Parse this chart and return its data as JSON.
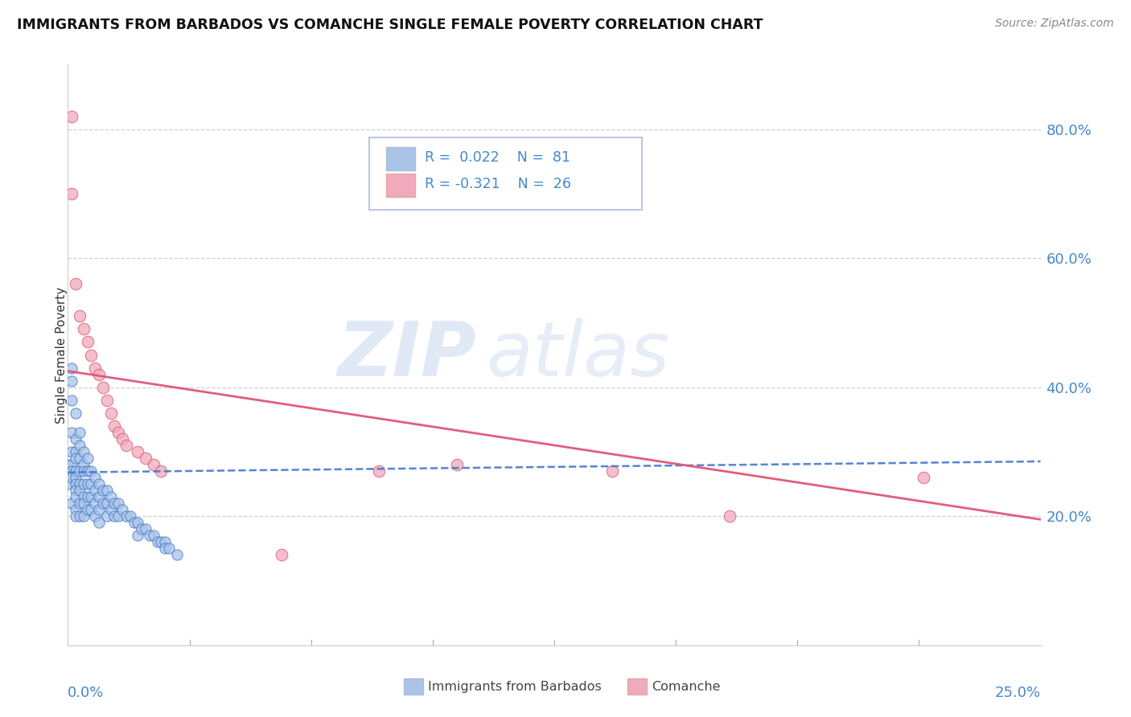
{
  "title": "IMMIGRANTS FROM BARBADOS VS COMANCHE SINGLE FEMALE POVERTY CORRELATION CHART",
  "source_text": "Source: ZipAtlas.com",
  "ylabel": "Single Female Poverty",
  "right_yticklabels": [
    "20.0%",
    "40.0%",
    "60.0%",
    "80.0%"
  ],
  "right_yticks": [
    0.2,
    0.4,
    0.6,
    0.8
  ],
  "xlim": [
    0.0,
    0.25
  ],
  "ylim": [
    0.0,
    0.9
  ],
  "barbados_color": "#aac4e8",
  "comanche_color": "#f0aabb",
  "barbados_line_color": "#4477cc",
  "comanche_line_color": "#e05575",
  "watermark_zip": "ZIP",
  "watermark_atlas": "atlas",
  "legend_text_color": "#4477cc",
  "legend_pink_text_color": "#e05575",
  "barbados_x": [
    0.0,
    0.0,
    0.001,
    0.001,
    0.001,
    0.001,
    0.001,
    0.001,
    0.001,
    0.001,
    0.001,
    0.002,
    0.002,
    0.002,
    0.002,
    0.002,
    0.002,
    0.002,
    0.002,
    0.002,
    0.002,
    0.002,
    0.003,
    0.003,
    0.003,
    0.003,
    0.003,
    0.003,
    0.003,
    0.003,
    0.004,
    0.004,
    0.004,
    0.004,
    0.004,
    0.004,
    0.004,
    0.005,
    0.005,
    0.005,
    0.005,
    0.005,
    0.006,
    0.006,
    0.006,
    0.006,
    0.007,
    0.007,
    0.007,
    0.007,
    0.008,
    0.008,
    0.008,
    0.008,
    0.009,
    0.009,
    0.01,
    0.01,
    0.01,
    0.011,
    0.011,
    0.012,
    0.012,
    0.013,
    0.013,
    0.014,
    0.015,
    0.016,
    0.017,
    0.018,
    0.018,
    0.019,
    0.02,
    0.021,
    0.022,
    0.023,
    0.024,
    0.025,
    0.025,
    0.026,
    0.028
  ],
  "barbados_y": [
    0.28,
    0.25,
    0.43,
    0.41,
    0.38,
    0.33,
    0.3,
    0.28,
    0.27,
    0.26,
    0.22,
    0.36,
    0.32,
    0.3,
    0.29,
    0.27,
    0.26,
    0.25,
    0.24,
    0.23,
    0.21,
    0.2,
    0.33,
    0.31,
    0.29,
    0.27,
    0.25,
    0.24,
    0.22,
    0.2,
    0.3,
    0.28,
    0.27,
    0.25,
    0.23,
    0.22,
    0.2,
    0.29,
    0.27,
    0.25,
    0.23,
    0.21,
    0.27,
    0.25,
    0.23,
    0.21,
    0.26,
    0.24,
    0.22,
    0.2,
    0.25,
    0.23,
    0.21,
    0.19,
    0.24,
    0.22,
    0.24,
    0.22,
    0.2,
    0.23,
    0.21,
    0.22,
    0.2,
    0.22,
    0.2,
    0.21,
    0.2,
    0.2,
    0.19,
    0.19,
    0.17,
    0.18,
    0.18,
    0.17,
    0.17,
    0.16,
    0.16,
    0.16,
    0.15,
    0.15,
    0.14
  ],
  "comanche_x": [
    0.001,
    0.001,
    0.002,
    0.003,
    0.004,
    0.005,
    0.006,
    0.007,
    0.008,
    0.009,
    0.01,
    0.011,
    0.012,
    0.013,
    0.014,
    0.015,
    0.018,
    0.02,
    0.022,
    0.024,
    0.055,
    0.08,
    0.1,
    0.14,
    0.17,
    0.22
  ],
  "comanche_y": [
    0.82,
    0.7,
    0.56,
    0.51,
    0.49,
    0.47,
    0.45,
    0.43,
    0.42,
    0.4,
    0.38,
    0.36,
    0.34,
    0.33,
    0.32,
    0.31,
    0.3,
    0.29,
    0.28,
    0.27,
    0.14,
    0.27,
    0.28,
    0.27,
    0.2,
    0.26
  ],
  "barbados_trend_x0": 0.0,
  "barbados_trend_y0": 0.268,
  "barbados_trend_x1": 0.25,
  "barbados_trend_y1": 0.285,
  "comanche_trend_x0": 0.0,
  "comanche_trend_y0": 0.425,
  "comanche_trend_x1": 0.25,
  "comanche_trend_y1": 0.195
}
